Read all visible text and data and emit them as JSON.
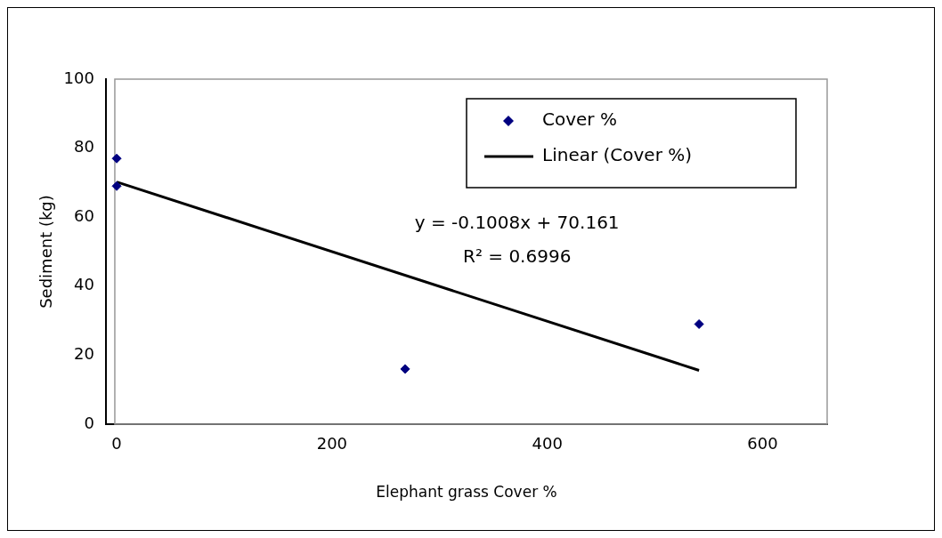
{
  "chart_data": {
    "type": "scatter",
    "xlabel": "Elephant grass Cover %",
    "ylabel": "Sediment (kg)",
    "xlim": [
      -10,
      660
    ],
    "xticks": [
      0,
      200,
      400,
      600
    ],
    "ylim": [
      0,
      100
    ],
    "yticks": [
      0,
      20,
      40,
      60,
      80,
      100
    ],
    "series": [
      {
        "name": "Cover %",
        "color": "#000080",
        "x": [
          0,
          0,
          268,
          541
        ],
        "values": [
          77,
          69,
          16,
          29
        ],
        "marker": "diamond"
      },
      {
        "name": "Linear (Cover %)",
        "type": "line",
        "color": "#000000",
        "x": [
          0,
          541
        ],
        "values": [
          70.2,
          15.6
        ],
        "marker": "none",
        "line_style": "solid"
      }
    ],
    "annotations": [
      "y = -0.1008x + 70.161",
      "R² = 0.6996"
    ],
    "legend": "top right",
    "grid": false
  }
}
